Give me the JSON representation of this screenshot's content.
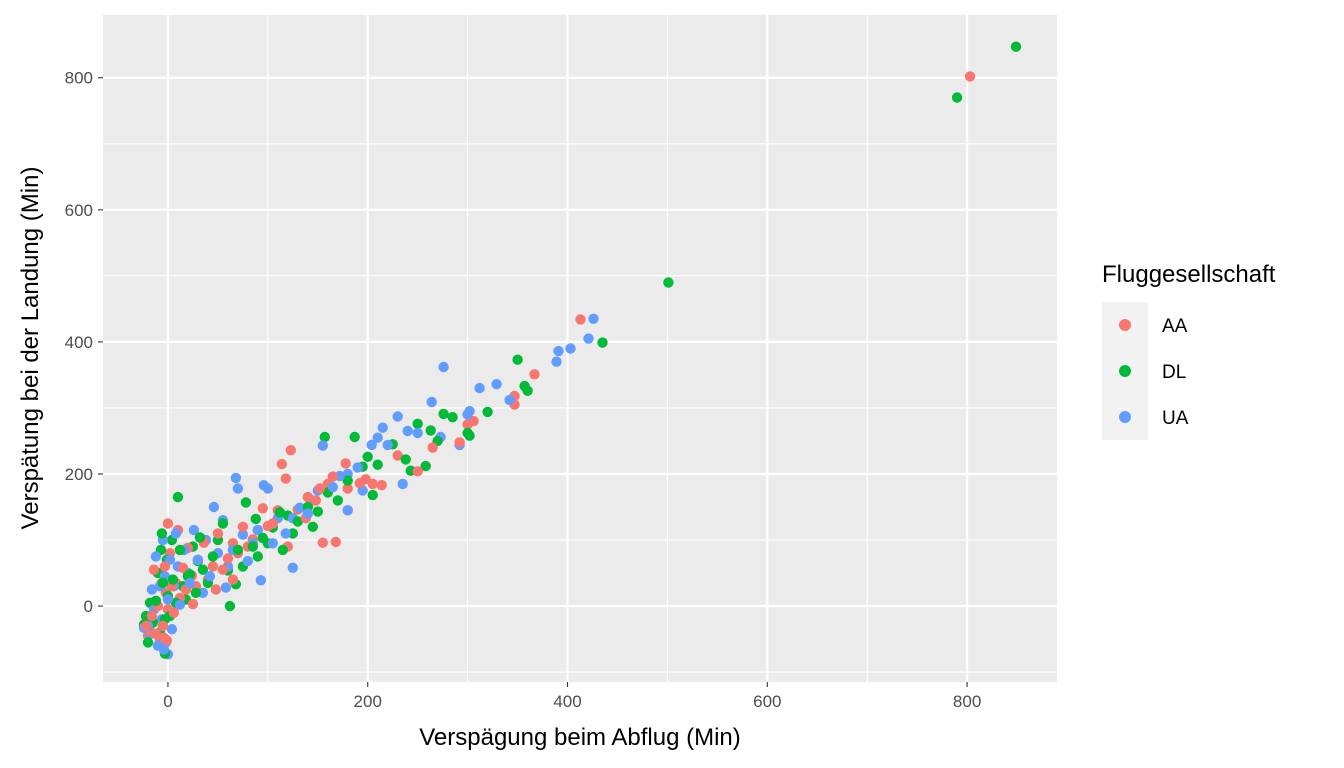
{
  "chart_data": {
    "type": "scatter",
    "xlabel": "Verspägung beim Abflug (Min)",
    "ylabel": "Verspätung bei der Landung (Min)",
    "xlim": [
      -65,
      890
    ],
    "ylim": [
      -115,
      895
    ],
    "x_ticks": [
      0,
      200,
      400,
      600,
      800
    ],
    "y_ticks": [
      0,
      200,
      400,
      600,
      800
    ],
    "x_tick_labels": [
      "0",
      "200",
      "400",
      "600",
      "800"
    ],
    "y_tick_labels": [
      "0",
      "200",
      "400",
      "600",
      "800"
    ],
    "grid": true,
    "legend": {
      "title": "Fluggesellschaft",
      "position": "right"
    },
    "series": [
      {
        "name": "AA",
        "color": "#F8766D",
        "points": [
          [
            803,
            802
          ],
          [
            413,
            434
          ],
          [
            367,
            351
          ],
          [
            347,
            318
          ],
          [
            347,
            305
          ],
          [
            306,
            280
          ],
          [
            300,
            275
          ],
          [
            292,
            248
          ],
          [
            265,
            240
          ],
          [
            250,
            204
          ],
          [
            230,
            228
          ],
          [
            214,
            183
          ],
          [
            205,
            185
          ],
          [
            198,
            192
          ],
          [
            192,
            186
          ],
          [
            180,
            178
          ],
          [
            178,
            216
          ],
          [
            165,
            196
          ],
          [
            160,
            185
          ],
          [
            152,
            178
          ],
          [
            148,
            160
          ],
          [
            140,
            165
          ],
          [
            138,
            133
          ],
          [
            130,
            146
          ],
          [
            123,
            236
          ],
          [
            118,
            193
          ],
          [
            114,
            215
          ],
          [
            110,
            145
          ],
          [
            105,
            125
          ],
          [
            100,
            121
          ],
          [
            95,
            148
          ],
          [
            90,
            115
          ],
          [
            85,
            101
          ],
          [
            80,
            90
          ],
          [
            75,
            120
          ],
          [
            70,
            80
          ],
          [
            65,
            95
          ],
          [
            60,
            72
          ],
          [
            55,
            55
          ],
          [
            50,
            110
          ],
          [
            45,
            60
          ],
          [
            40,
            40
          ],
          [
            36,
            96
          ],
          [
            30,
            70
          ],
          [
            28,
            30
          ],
          [
            24,
            46
          ],
          [
            20,
            88
          ],
          [
            18,
            25
          ],
          [
            15,
            58
          ],
          [
            12,
            12
          ],
          [
            10,
            115
          ],
          [
            8,
            35
          ],
          [
            6,
            -10
          ],
          [
            4,
            30
          ],
          [
            2,
            80
          ],
          [
            0,
            -5
          ],
          [
            0,
            125
          ],
          [
            -2,
            20
          ],
          [
            -3,
            60
          ],
          [
            -5,
            -30
          ],
          [
            -6,
            35
          ],
          [
            -8,
            -50
          ],
          [
            -10,
            0
          ],
          [
            -12,
            -42
          ],
          [
            -14,
            55
          ],
          [
            -16,
            -15
          ],
          [
            -18,
            -38
          ],
          [
            -20,
            -45
          ],
          [
            -22,
            -30
          ],
          [
            168,
            97
          ],
          [
            155,
            96
          ],
          [
            180,
            145
          ],
          [
            120,
            90
          ],
          [
            65,
            40
          ],
          [
            48,
            25
          ],
          [
            25,
            3
          ],
          [
            -4,
            -48
          ],
          [
            -1,
            -52
          ]
        ]
      },
      {
        "name": "DL",
        "color": "#00BA38",
        "points": [
          [
            849,
            847
          ],
          [
            790,
            770
          ],
          [
            501,
            490
          ],
          [
            435,
            399
          ],
          [
            360,
            326
          ],
          [
            357,
            333
          ],
          [
            350,
            373
          ],
          [
            320,
            294
          ],
          [
            302,
            258
          ],
          [
            300,
            262
          ],
          [
            285,
            286
          ],
          [
            276,
            291
          ],
          [
            270,
            250
          ],
          [
            263,
            266
          ],
          [
            258,
            212
          ],
          [
            250,
            276
          ],
          [
            238,
            222
          ],
          [
            225,
            245
          ],
          [
            210,
            214
          ],
          [
            200,
            226
          ],
          [
            195,
            211
          ],
          [
            187,
            256
          ],
          [
            180,
            190
          ],
          [
            170,
            160
          ],
          [
            160,
            172
          ],
          [
            157,
            256
          ],
          [
            150,
            143
          ],
          [
            140,
            150
          ],
          [
            130,
            128
          ],
          [
            125,
            110
          ],
          [
            120,
            137
          ],
          [
            112,
            142
          ],
          [
            105,
            119
          ],
          [
            100,
            95
          ],
          [
            95,
            103
          ],
          [
            90,
            75
          ],
          [
            85,
            90
          ],
          [
            78,
            157
          ],
          [
            75,
            60
          ],
          [
            70,
            85
          ],
          [
            62,
            0
          ],
          [
            60,
            54
          ],
          [
            55,
            125
          ],
          [
            50,
            100
          ],
          [
            45,
            75
          ],
          [
            40,
            35
          ],
          [
            35,
            55
          ],
          [
            30,
            68
          ],
          [
            28,
            20
          ],
          [
            25,
            90
          ],
          [
            20,
            45
          ],
          [
            18,
            10
          ],
          [
            15,
            30
          ],
          [
            12,
            85
          ],
          [
            10,
            165
          ],
          [
            8,
            5
          ],
          [
            5,
            40
          ],
          [
            4,
            100
          ],
          [
            2,
            -15
          ],
          [
            0,
            15
          ],
          [
            -1,
            70
          ],
          [
            -3,
            -20
          ],
          [
            -5,
            35
          ],
          [
            -6,
            110
          ],
          [
            -8,
            -40
          ],
          [
            -10,
            50
          ],
          [
            -12,
            8
          ],
          [
            -15,
            -25
          ],
          [
            -18,
            5
          ],
          [
            -20,
            -55
          ],
          [
            -22,
            -15
          ],
          [
            -24,
            -28
          ],
          [
            -3,
            -72
          ],
          [
            22,
            48
          ],
          [
            68,
            33
          ],
          [
            115,
            85
          ],
          [
            145,
            120
          ],
          [
            205,
            168
          ],
          [
            243,
            205
          ],
          [
            88,
            132
          ],
          [
            32,
            104
          ],
          [
            -7,
            85
          ]
        ]
      },
      {
        "name": "UA",
        "color": "#619CFF",
        "points": [
          [
            426,
            435
          ],
          [
            421,
            405
          ],
          [
            403,
            390
          ],
          [
            391,
            386
          ],
          [
            389,
            370
          ],
          [
            342,
            312
          ],
          [
            329,
            336
          ],
          [
            312,
            330
          ],
          [
            302,
            295
          ],
          [
            292,
            244
          ],
          [
            276,
            362
          ],
          [
            273,
            256
          ],
          [
            264,
            309
          ],
          [
            250,
            262
          ],
          [
            240,
            265
          ],
          [
            230,
            287
          ],
          [
            220,
            244
          ],
          [
            215,
            270
          ],
          [
            210,
            255
          ],
          [
            204,
            244
          ],
          [
            195,
            175
          ],
          [
            190,
            210
          ],
          [
            180,
            200
          ],
          [
            172,
            197
          ],
          [
            165,
            180
          ],
          [
            155,
            243
          ],
          [
            150,
            175
          ],
          [
            145,
            160
          ],
          [
            140,
            140
          ],
          [
            132,
            149
          ],
          [
            125,
            133
          ],
          [
            118,
            110
          ],
          [
            110,
            133
          ],
          [
            105,
            95
          ],
          [
            100,
            178
          ],
          [
            96,
            183
          ],
          [
            90,
            115
          ],
          [
            85,
            95
          ],
          [
            80,
            68
          ],
          [
            75,
            108
          ],
          [
            70,
            178
          ],
          [
            68,
            194
          ],
          [
            65,
            85
          ],
          [
            60,
            60
          ],
          [
            55,
            130
          ],
          [
            50,
            80
          ],
          [
            46,
            150
          ],
          [
            42,
            45
          ],
          [
            38,
            100
          ],
          [
            35,
            20
          ],
          [
            30,
            70
          ],
          [
            26,
            115
          ],
          [
            22,
            35
          ],
          [
            20,
            50
          ],
          [
            16,
            85
          ],
          [
            12,
            2
          ],
          [
            10,
            60
          ],
          [
            8,
            110
          ],
          [
            6,
            30
          ],
          [
            4,
            -35
          ],
          [
            2,
            70
          ],
          [
            0,
            10
          ],
          [
            -2,
            -55
          ],
          [
            -3,
            45
          ],
          [
            -5,
            100
          ],
          [
            -6,
            -20
          ],
          [
            -8,
            30
          ],
          [
            -10,
            -60
          ],
          [
            -12,
            75
          ],
          [
            -14,
            -5
          ],
          [
            -16,
            25
          ],
          [
            -18,
            -42
          ],
          [
            -20,
            -30
          ],
          [
            -24,
            -33
          ],
          [
            0,
            -73
          ],
          [
            -4,
            -66
          ],
          [
            93,
            39
          ],
          [
            58,
            28
          ],
          [
            125,
            58
          ],
          [
            235,
            185
          ],
          [
            180,
            145
          ],
          [
            300,
            290
          ]
        ]
      }
    ]
  }
}
